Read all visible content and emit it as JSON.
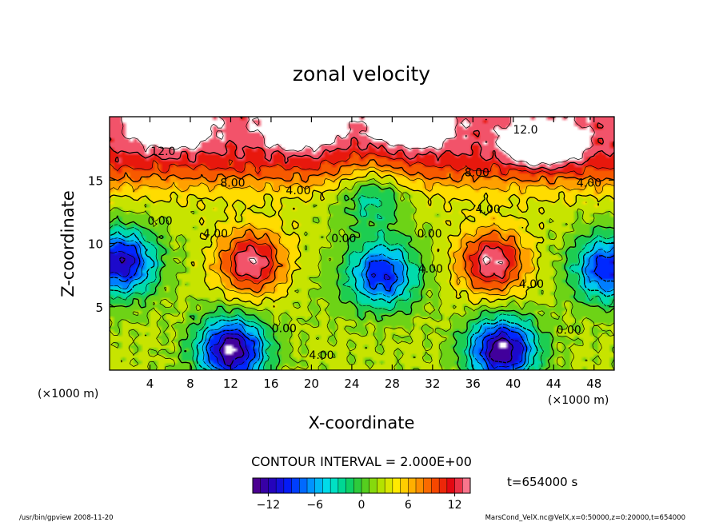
{
  "chart_data": {
    "type": "heatmap",
    "title": "zonal velocity",
    "xlabel": "X-coordinate",
    "ylabel": "Z-coordinate",
    "x_unit_left": "(×1000 m)",
    "x_unit_right": "(×1000 m)",
    "xlim": [
      0,
      50
    ],
    "ylim": [
      0,
      20
    ],
    "x_ticks": [
      4,
      8,
      12,
      16,
      20,
      24,
      28,
      32,
      36,
      40,
      44,
      48
    ],
    "x_tick_labels": [
      "4",
      "8",
      "12",
      "16",
      "20",
      "24",
      "28",
      "32",
      "36",
      "40",
      "44",
      "48"
    ],
    "y_ticks": [
      5,
      10,
      15
    ],
    "y_tick_labels": [
      "5",
      "10",
      "15"
    ],
    "contour_interval_text": "CONTOUR INTERVAL = 2.000E+00",
    "contour_labels": [
      {
        "text": "12.0",
        "x": 5.3,
        "z": 17.3
      },
      {
        "text": "12.0",
        "x": 41.2,
        "z": 19.0
      },
      {
        "text": "8.00",
        "x": 12.2,
        "z": 14.8
      },
      {
        "text": "8.00",
        "x": 36.4,
        "z": 15.6
      },
      {
        "text": "4.00",
        "x": 18.7,
        "z": 14.2
      },
      {
        "text": "4.00",
        "x": 47.5,
        "z": 14.8
      },
      {
        "text": "4.00",
        "x": 10.5,
        "z": 10.8
      },
      {
        "text": "4.00",
        "x": 37.5,
        "z": 12.7
      },
      {
        "text": "4.00",
        "x": 31.8,
        "z": 8.0
      },
      {
        "text": "4.00",
        "x": 41.8,
        "z": 6.8
      },
      {
        "text": "4.00",
        "x": 21.0,
        "z": 1.2
      },
      {
        "text": "0.00",
        "x": 5.0,
        "z": 11.8
      },
      {
        "text": "0.00",
        "x": 23.2,
        "z": 10.4
      },
      {
        "text": "0.00",
        "x": 31.7,
        "z": 10.8
      },
      {
        "text": "0.00",
        "x": 17.3,
        "z": 3.3
      },
      {
        "text": "0.00",
        "x": 45.5,
        "z": 3.2
      }
    ],
    "field_extrema": [
      {
        "x": 14,
        "z": 8.5,
        "value": 14,
        "note": "positive core"
      },
      {
        "x": 38,
        "z": 8.5,
        "value": 14,
        "note": "positive core"
      },
      {
        "x": 27,
        "z": 7.5,
        "value": -10,
        "note": "negative core"
      },
      {
        "x": 1,
        "z": 8.5,
        "value": -12,
        "note": "negative core"
      },
      {
        "x": 49.5,
        "z": 8.0,
        "value": -10,
        "note": "negative core"
      },
      {
        "x": 12,
        "z": 1.5,
        "value": -14,
        "note": "negative core"
      },
      {
        "x": 39,
        "z": 1.5,
        "value": -14,
        "note": "negative core"
      },
      {
        "x": 26,
        "z": 14.0,
        "value": -4,
        "note": "negative pocket"
      },
      {
        "x": 19,
        "z": 19.5,
        "value": 14,
        "note": "upper jet"
      },
      {
        "x": 6,
        "z": 19.5,
        "value": 14,
        "note": "upper jet"
      },
      {
        "x": 30,
        "z": 19.5,
        "value": 14,
        "note": "upper jet"
      },
      {
        "x": 43,
        "z": 18.0,
        "value": 14,
        "note": "upper jet"
      },
      {
        "x": 20,
        "z": 6.0,
        "value": 2,
        "note": "weak flow"
      }
    ],
    "colorbar": {
      "min": -14,
      "max": 14,
      "ticks": [
        -12,
        -6,
        0,
        6,
        12
      ],
      "tick_labels": [
        "−12",
        "−6",
        "0",
        "6",
        "12"
      ]
    },
    "time_label": "t=654000 s"
  },
  "footer": {
    "left": "/usr/bin/gpview  2008-11-20",
    "right": "MarsCond_VelX.nc@VelX,x=0:50000,z=0:20000,t=654000"
  },
  "colors": {
    "axis": "#000000",
    "background": "#ffffff"
  }
}
